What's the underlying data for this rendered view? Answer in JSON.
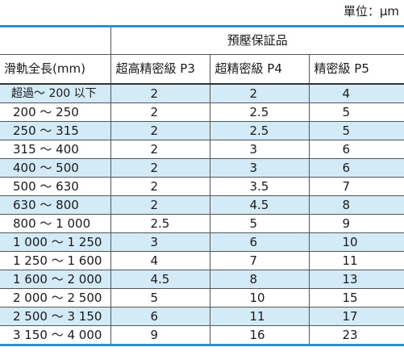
{
  "unit_label": "單位：μm",
  "table": {
    "group_header": "預壓保証品",
    "columns": [
      "滑軌全長(mm)",
      "超高精密級 P3",
      "超精密級 P4",
      "精密級 P5"
    ],
    "rows": [
      [
        "超過～ 200 以下",
        "2",
        "2",
        "4"
      ],
      [
        "200 ～ 250",
        "2",
        "2.5",
        "5"
      ],
      [
        "250 ～ 315",
        "2",
        "2.5",
        "5"
      ],
      [
        "315 ～ 400",
        "2",
        "3",
        "6"
      ],
      [
        "400 ～ 500",
        "2",
        "3",
        "6"
      ],
      [
        "500 ～ 630",
        "2",
        "3.5",
        "7"
      ],
      [
        "630 ～ 800",
        "2",
        "4.5",
        "8"
      ],
      [
        "800 ～ 1 000",
        "2.5",
        "5",
        "9"
      ],
      [
        "1 000 ～ 1 250",
        "3",
        "6",
        "10"
      ],
      [
        "1 250 ～ 1 600",
        "4",
        "7",
        "11"
      ],
      [
        "1 600 ～ 2 000",
        "4.5",
        "8",
        "13"
      ],
      [
        "2 000 ～ 2 500",
        "5",
        "10",
        "15"
      ],
      [
        "2 500 ～ 3 150",
        "6",
        "11",
        "17"
      ],
      [
        "3 150 ～ 4 000",
        "9",
        "16",
        "23"
      ]
    ],
    "shaded_rows": [
      0,
      2,
      4,
      6,
      8,
      10,
      12
    ],
    "accent_color": "#2e8fc9",
    "shade_color": "#d3eaf7"
  }
}
